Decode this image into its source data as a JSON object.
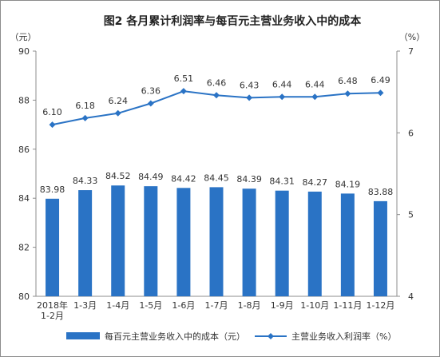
{
  "chart_data": {
    "type": "bar+line",
    "title": "图2  各月累计利润率与每百元主营业务收入中的成本",
    "left_unit": "（元）",
    "right_unit": "（%）",
    "categories": [
      "2018年\n1-2月",
      "1-3月",
      "1-4月",
      "1-5月",
      "1-6月",
      "1-7月",
      "1-8月",
      "1-9月",
      "1-10月",
      "1-11月",
      "1-12月"
    ],
    "left_axis": {
      "min": 80,
      "max": 90,
      "ticks": [
        80,
        82,
        84,
        86,
        88,
        90
      ]
    },
    "right_axis": {
      "min": 4,
      "max": 7,
      "ticks": [
        4,
        5,
        6,
        7
      ]
    },
    "series": [
      {
        "name": "每百元主营业务收入中的成本（元）",
        "type": "bar",
        "axis": "left",
        "color": "#2a73c5",
        "values": [
          83.98,
          84.33,
          84.52,
          84.49,
          84.42,
          84.45,
          84.39,
          84.31,
          84.27,
          84.19,
          83.88
        ],
        "labels": [
          "83.98",
          "84.33",
          "84.52",
          "84.49",
          "84.42",
          "84.45",
          "84.39",
          "84.31",
          "84.27",
          "84.19",
          "83.88"
        ]
      },
      {
        "name": "主营业务收入利润率（%）",
        "type": "line",
        "axis": "right",
        "color": "#2a73c5",
        "values": [
          6.1,
          6.18,
          6.24,
          6.36,
          6.51,
          6.46,
          6.43,
          6.44,
          6.44,
          6.48,
          6.49
        ],
        "labels": [
          "6.10",
          "6.18",
          "6.24",
          "6.36",
          "6.51",
          "6.46",
          "6.43",
          "6.44",
          "6.44",
          "6.48",
          "6.49"
        ]
      }
    ],
    "legend_position": "bottom",
    "grid": false
  }
}
